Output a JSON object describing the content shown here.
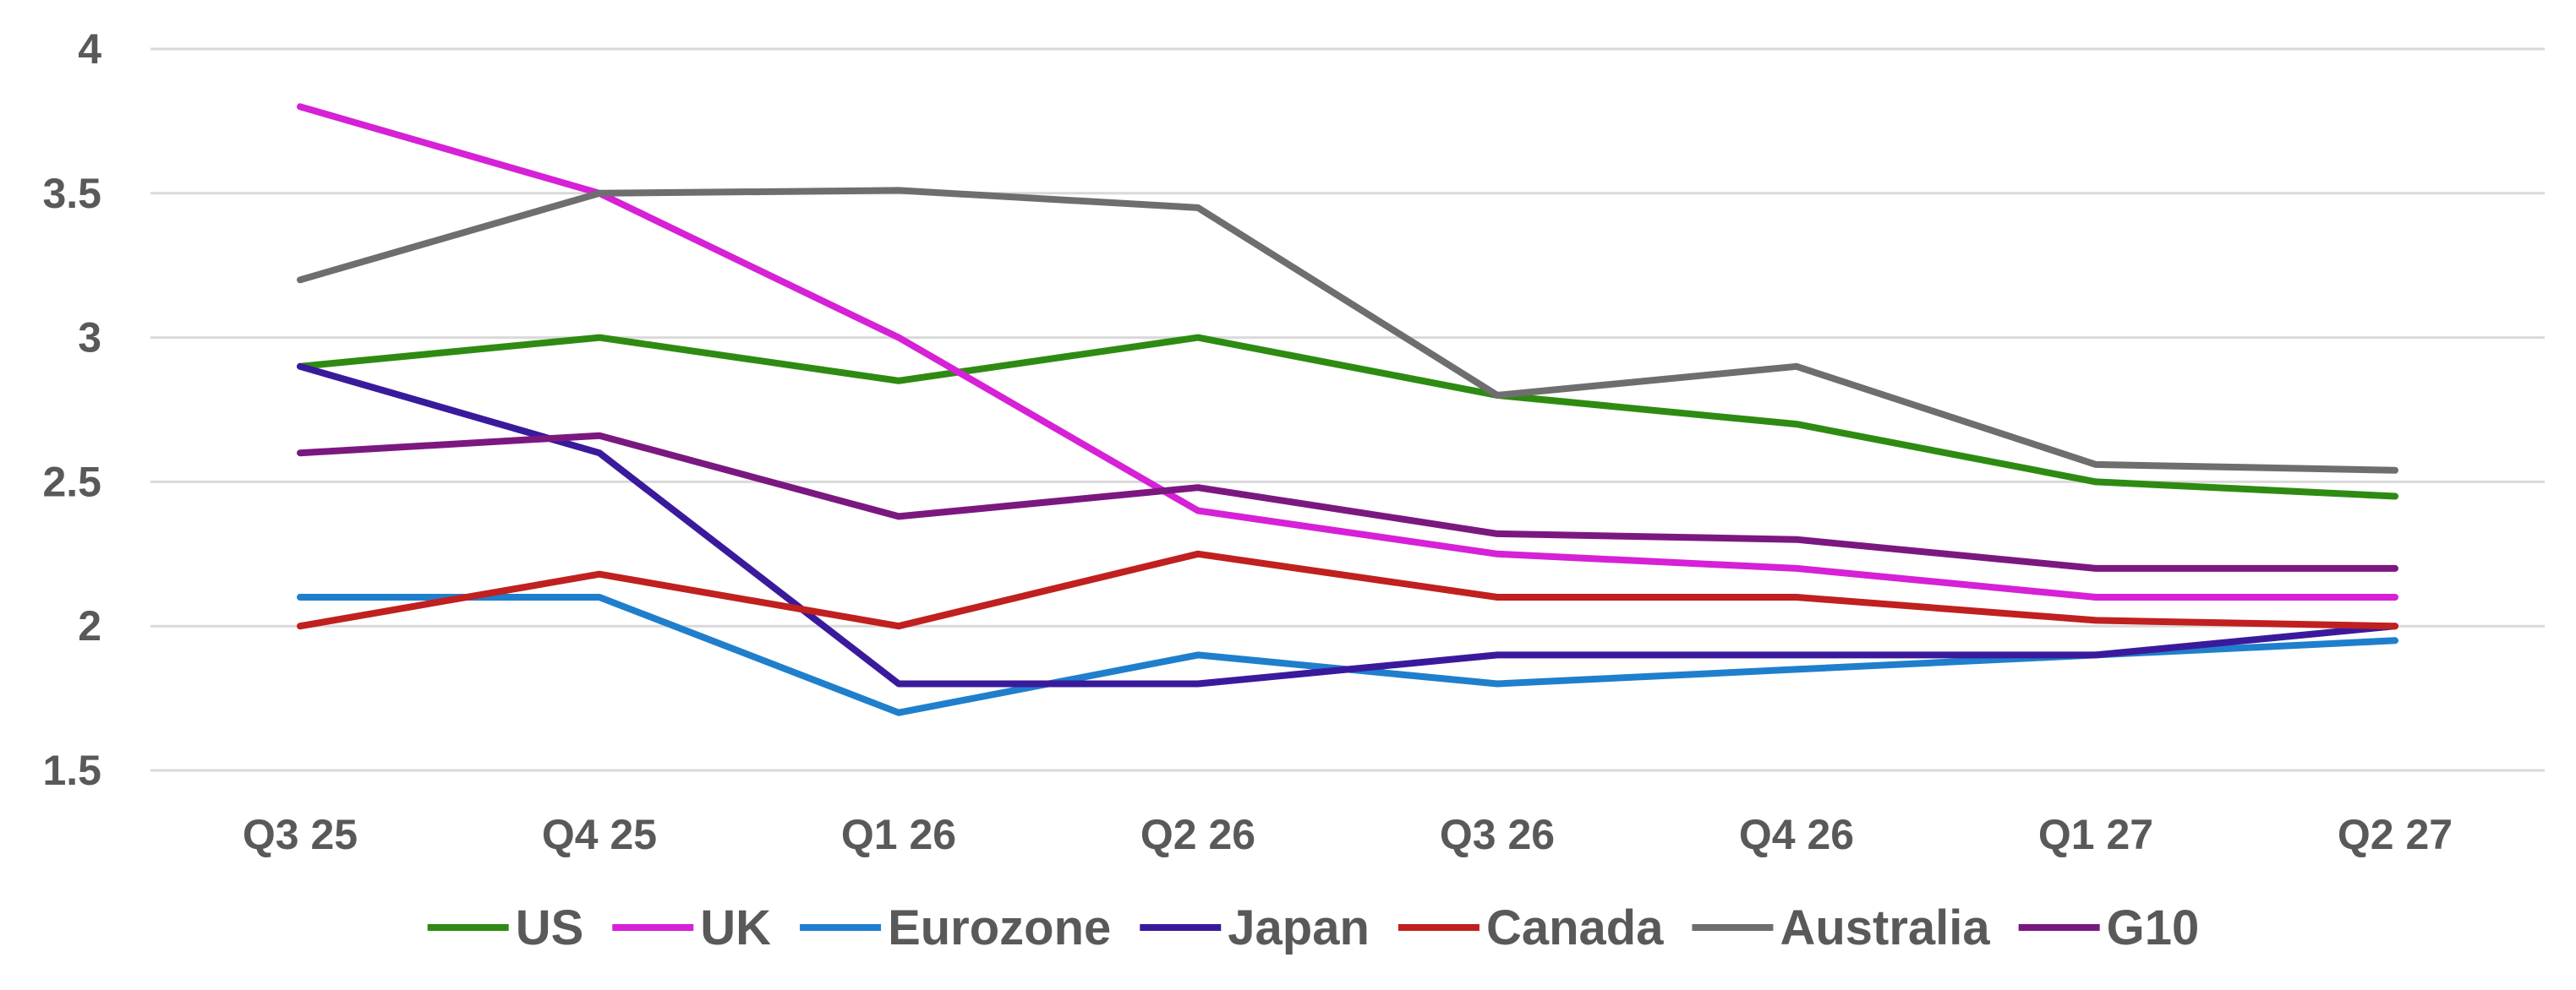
{
  "chart_data": {
    "type": "line",
    "title": "",
    "xlabel": "",
    "ylabel": "",
    "categories": [
      "Q3 25",
      "Q4 25",
      "Q1 26",
      "Q2 26",
      "Q3 26",
      "Q4 26",
      "Q1 27",
      "Q2 27"
    ],
    "ylim": [
      1.5,
      4
    ],
    "yticks": [
      4,
      3.5,
      3,
      2.5,
      2,
      1.5
    ],
    "grid": true,
    "legend_position": "bottom",
    "series": [
      {
        "name": "US",
        "color": "#2e8b12",
        "values": [
          2.9,
          3.0,
          2.85,
          3.0,
          2.8,
          2.7,
          2.5,
          2.45
        ]
      },
      {
        "name": "UK",
        "color": "#d621d6",
        "values": [
          3.8,
          3.5,
          3.0,
          2.4,
          2.25,
          2.2,
          2.1,
          2.1
        ]
      },
      {
        "name": "Eurozone",
        "color": "#1f7fcc",
        "values": [
          2.1,
          2.1,
          1.7,
          1.9,
          1.8,
          1.85,
          1.9,
          1.95
        ]
      },
      {
        "name": "Japan",
        "color": "#3a1a9c",
        "values": [
          2.9,
          2.6,
          1.8,
          1.8,
          1.9,
          1.9,
          1.9,
          2.0
        ]
      },
      {
        "name": "Canada",
        "color": "#c0201f",
        "values": [
          2.0,
          2.18,
          2.0,
          2.25,
          2.1,
          2.1,
          2.02,
          2.0
        ]
      },
      {
        "name": "Australia",
        "color": "#6e6e6e",
        "values": [
          3.2,
          3.5,
          3.51,
          3.45,
          2.8,
          2.9,
          2.56,
          2.54
        ]
      },
      {
        "name": "G10",
        "color": "#7b1880",
        "values": [
          2.6,
          2.66,
          2.38,
          2.48,
          2.32,
          2.3,
          2.2,
          2.2
        ]
      }
    ]
  }
}
